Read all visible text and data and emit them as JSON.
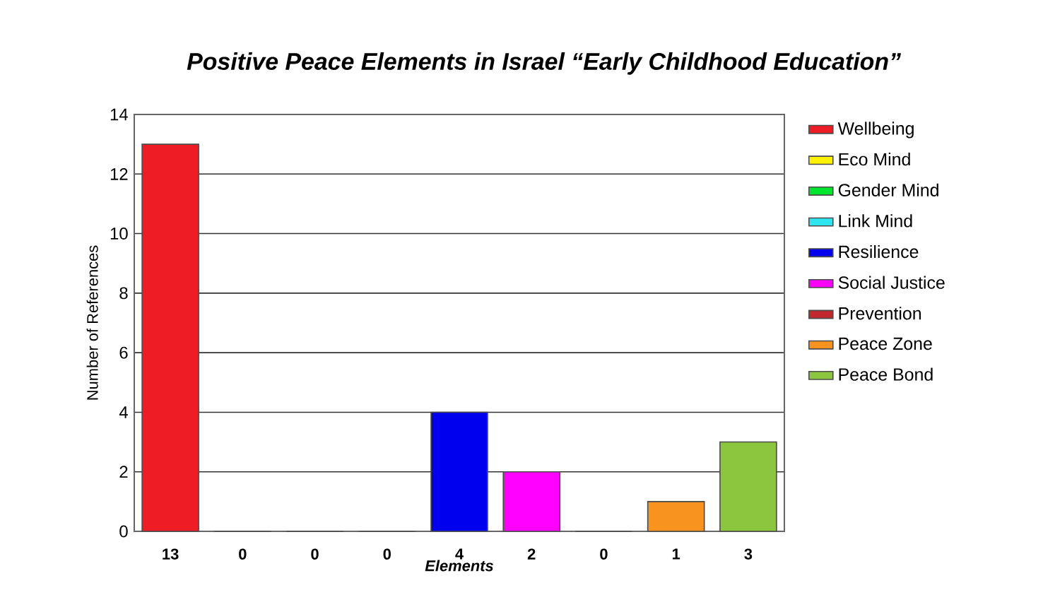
{
  "chart_data": {
    "type": "bar",
    "title": "Positive Peace Elements  in Israel “Early Childhood Education”",
    "xlabel": "Elements",
    "ylabel": "Number of References",
    "categories": [
      null,
      null,
      null,
      null,
      null,
      null,
      null,
      null,
      null
    ],
    "series": [
      {
        "name": "Wellbeing",
        "color": "#ee1c25",
        "values": [
          13,
          null,
          null,
          null,
          null,
          null,
          null,
          null,
          null
        ]
      },
      {
        "name": "Eco Mind",
        "color": "#fff200",
        "values": [
          null,
          0,
          null,
          null,
          null,
          null,
          null,
          null,
          null
        ]
      },
      {
        "name": "Gender Mind",
        "color": "#00e62e",
        "values": [
          null,
          null,
          0,
          null,
          null,
          null,
          null,
          null,
          null
        ]
      },
      {
        "name": "Link Mind",
        "color": "#2de6f0",
        "values": [
          null,
          null,
          null,
          0,
          null,
          null,
          null,
          null,
          null
        ]
      },
      {
        "name": "Resilience",
        "color": "#0000ee",
        "values": [
          null,
          null,
          null,
          null,
          4,
          null,
          null,
          null,
          null
        ]
      },
      {
        "name": "Social Justice",
        "color": "#ff00ff",
        "values": [
          null,
          null,
          null,
          null,
          null,
          2,
          null,
          null,
          null
        ]
      },
      {
        "name": "Prevention",
        "color": "#c1272d",
        "values": [
          null,
          null,
          null,
          null,
          null,
          null,
          0,
          null,
          null
        ]
      },
      {
        "name": "Peace Zone",
        "color": "#f7931e",
        "values": [
          null,
          null,
          null,
          null,
          null,
          null,
          null,
          1,
          null
        ]
      },
      {
        "name": "Peace Bond",
        "color": "#8cc63f",
        "values": [
          null,
          null,
          null,
          null,
          null,
          null,
          null,
          null,
          3
        ]
      }
    ],
    "ylim": [
      0,
      14
    ],
    "yticks": [
      0,
      2,
      4,
      6,
      8,
      10,
      12,
      14
    ],
    "grid": "y",
    "legend": "right",
    "data_labels": true
  }
}
